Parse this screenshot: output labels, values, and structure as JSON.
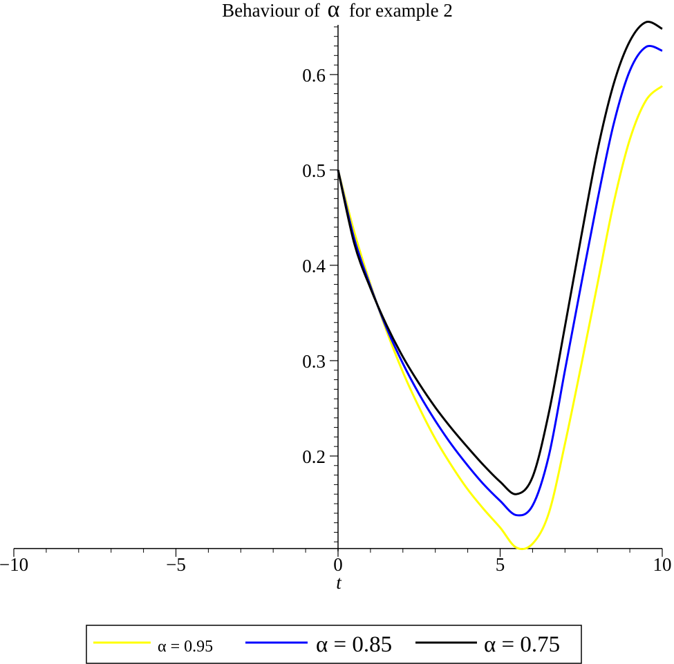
{
  "chart_data": {
    "type": "line",
    "title": {
      "prefix": "Behaviour of",
      "symbol": "α",
      "suffix": " for example 2"
    },
    "xlabel": "t",
    "ylabel": "",
    "xlim": [
      -10,
      10
    ],
    "ylim": [
      0.1,
      0.655
    ],
    "x_axis_crosses_y_at": 0.103,
    "x_ticks": [
      -10,
      -5,
      0,
      5,
      10
    ],
    "x_tick_labels": [
      "−10",
      "−5",
      "0",
      "5",
      "10"
    ],
    "y_ticks": [
      0.2,
      0.3,
      0.4,
      0.5,
      0.6
    ],
    "y_tick_labels": [
      "0.2",
      "0.3",
      "0.4",
      "0.5",
      "0.6"
    ],
    "grid": false,
    "legend": "bottom",
    "x": [
      0,
      0.5,
      1,
      1.5,
      2,
      2.5,
      3,
      3.5,
      4,
      4.5,
      5,
      5.5,
      6,
      6.5,
      7,
      7.5,
      8,
      8.5,
      9,
      9.5,
      10
    ],
    "series": [
      {
        "name": "α = 0.95",
        "color": "#ffff00",
        "values": [
          0.5,
          0.435,
          0.38,
          0.331,
          0.288,
          0.251,
          0.218,
          0.19,
          0.165,
          0.144,
          0.125,
          0.104,
          0.108,
          0.14,
          0.213,
          0.295,
          0.38,
          0.465,
          0.532,
          0.573,
          0.588
        ]
      },
      {
        "name": "α = 0.85",
        "color": "#0000ff",
        "values": [
          0.5,
          0.428,
          0.378,
          0.334,
          0.297,
          0.265,
          0.237,
          0.212,
          0.19,
          0.17,
          0.153,
          0.138,
          0.148,
          0.2,
          0.29,
          0.38,
          0.468,
          0.548,
          0.604,
          0.629,
          0.625
        ]
      },
      {
        "name": "α = 0.75",
        "color": "#000000",
        "values": [
          0.5,
          0.423,
          0.376,
          0.337,
          0.304,
          0.276,
          0.251,
          0.229,
          0.209,
          0.19,
          0.173,
          0.16,
          0.178,
          0.245,
          0.336,
          0.43,
          0.52,
          0.59,
          0.635,
          0.655,
          0.648
        ]
      }
    ]
  }
}
